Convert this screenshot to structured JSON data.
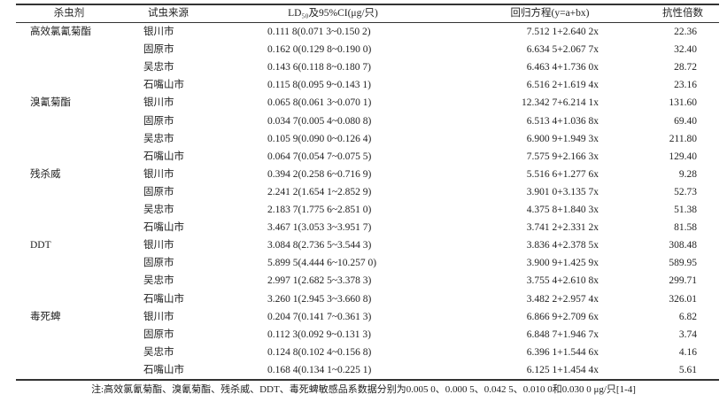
{
  "table": {
    "headers": [
      "杀虫剂",
      "试虫来源",
      "LD₅₀及95%CI(μg/只)",
      "回归方程(y=a+bx)",
      "抗性倍数"
    ],
    "rows": [
      {
        "insecticide": "高效氯氰菊酯",
        "source": "银川市",
        "ld50": "0.111 8(0.071 3~0.150 2)",
        "equation": "7.512 1+2.640 2x",
        "ratio": "22.36"
      },
      {
        "insecticide": "",
        "source": "固原市",
        "ld50": "0.162 0(0.129 8~0.190 0)",
        "equation": "6.634 5+2.067 7x",
        "ratio": "32.40"
      },
      {
        "insecticide": "",
        "source": "吴忠市",
        "ld50": "0.143 6(0.118 8~0.180 7)",
        "equation": "6.463 4+1.736 0x",
        "ratio": "28.72"
      },
      {
        "insecticide": "",
        "source": "石嘴山市",
        "ld50": "0.115 8(0.095 9~0.143 1)",
        "equation": "6.516 2+1.619 4x",
        "ratio": "23.16"
      },
      {
        "insecticide": "溴氰菊酯",
        "source": "银川市",
        "ld50": "0.065 8(0.061 3~0.070 1)",
        "equation": "12.342 7+6.214 1x",
        "ratio": "131.60"
      },
      {
        "insecticide": "",
        "source": "固原市",
        "ld50": "0.034 7(0.005 4~0.080 8)",
        "equation": "6.513 4+1.036 8x",
        "ratio": "69.40"
      },
      {
        "insecticide": "",
        "source": "吴忠市",
        "ld50": "0.105 9(0.090 0~0.126 4)",
        "equation": "6.900 9+1.949 3x",
        "ratio": "211.80"
      },
      {
        "insecticide": "",
        "source": "石嘴山市",
        "ld50": "0.064 7(0.054 7~0.075 5)",
        "equation": "7.575 9+2.166 3x",
        "ratio": "129.40"
      },
      {
        "insecticide": "残杀威",
        "source": "银川市",
        "ld50": "0.394 2(0.258 6~0.716 9)",
        "equation": "5.516 6+1.277 6x",
        "ratio": "9.28"
      },
      {
        "insecticide": "",
        "source": "固原市",
        "ld50": "2.241 2(1.654 1~2.852 9)",
        "equation": "3.901 0+3.135 7x",
        "ratio": "52.73"
      },
      {
        "insecticide": "",
        "source": "吴忠市",
        "ld50": "2.183 7(1.775 6~2.851 0)",
        "equation": "4.375 8+1.840 3x",
        "ratio": "51.38"
      },
      {
        "insecticide": "",
        "source": "石嘴山市",
        "ld50": "3.467 1(3.053 3~3.951 7)",
        "equation": "3.741 2+2.331 2x",
        "ratio": "81.58"
      },
      {
        "insecticide": "DDT",
        "source": "银川市",
        "ld50": "3.084 8(2.736 5~3.544 3)",
        "equation": "3.836 4+2.378 5x",
        "ratio": "308.48"
      },
      {
        "insecticide": "",
        "source": "固原市",
        "ld50": "5.899 5(4.444 6~10.257 0)",
        "equation": "3.900 9+1.425 9x",
        "ratio": "589.95"
      },
      {
        "insecticide": "",
        "source": "吴忠市",
        "ld50": "2.997 1(2.682 5~3.378 3)",
        "equation": "3.755 4+2.610 8x",
        "ratio": "299.71"
      },
      {
        "insecticide": "",
        "source": "石嘴山市",
        "ld50": "3.260 1(2.945 3~3.660 8)",
        "equation": "3.482 2+2.957 4x",
        "ratio": "326.01"
      },
      {
        "insecticide": "毒死蜱",
        "source": "银川市",
        "ld50": "0.204 7(0.141 7~0.361 3)",
        "equation": "6.866 9+2.709 6x",
        "ratio": "6.82"
      },
      {
        "insecticide": "",
        "source": "固原市",
        "ld50": "0.112 3(0.092 9~0.131 3)",
        "equation": "6.848 7+1.946 7x",
        "ratio": "3.74"
      },
      {
        "insecticide": "",
        "source": "吴忠市",
        "ld50": "0.124 8(0.102 4~0.156 8)",
        "equation": "6.396 1+1.544 6x",
        "ratio": "4.16"
      },
      {
        "insecticide": "",
        "source": "石嘴山市",
        "ld50": "0.168 4(0.134 1~0.225 1)",
        "equation": "6.125 1+1.454 4x",
        "ratio": "5.61"
      }
    ],
    "note": "注:高效氯氰菊酯、溴氰菊酯、残杀威、DDT、毒死蜱敏感品系数据分别为0.005 0、0.000 5、0.042 5、0.010 0和0.030 0 μg/只[1-4]"
  }
}
